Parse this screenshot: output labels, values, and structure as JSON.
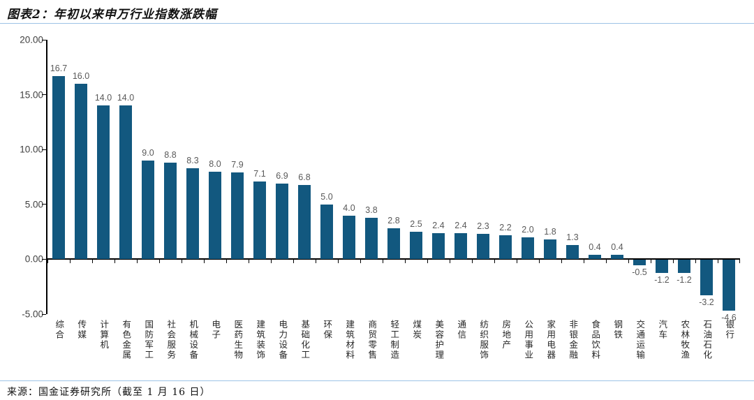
{
  "header": {
    "title": "图表2：年初以来申万行业指数涨跌幅"
  },
  "footer": {
    "source": "来源：国金证券研究所（截至 1 月 16 日）"
  },
  "colors": {
    "bar": "#12587F",
    "rule": "#9DC3E6",
    "value_label": "#595959",
    "axis_label": "#404040",
    "axis_line": "#000000"
  },
  "chart_data": {
    "type": "bar",
    "title": "年初以来申万行业指数涨跌幅",
    "categories": [
      "综合",
      "传媒",
      "计算机",
      "有色金属",
      "国防军工",
      "社会服务",
      "机械设备",
      "电子",
      "医药生物",
      "建筑装饰",
      "电力设备",
      "基础化工",
      "环保",
      "建筑材料",
      "商贸零售",
      "轻工制造",
      "煤炭",
      "美容护理",
      "通信",
      "纺织服饰",
      "房地产",
      "公用事业",
      "家用电器",
      "非银金融",
      "食品饮料",
      "钢铁",
      "交通运输",
      "汽车",
      "农林牧渔",
      "石油石化",
      "银行"
    ],
    "values": [
      16.7,
      16.0,
      14.0,
      14.0,
      9.0,
      8.8,
      8.3,
      8.0,
      7.9,
      7.1,
      6.9,
      6.8,
      5.0,
      4.0,
      3.8,
      2.8,
      2.5,
      2.4,
      2.4,
      2.3,
      2.2,
      2.0,
      1.8,
      1.3,
      0.4,
      0.4,
      -0.5,
      -1.2,
      -1.2,
      -3.2,
      -4.6
    ],
    "ytick_labels": [
      "20.00",
      "15.00",
      "10.00",
      "5.00",
      "0.00",
      "-5.00"
    ],
    "yticks": [
      20,
      15,
      10,
      5,
      0,
      -5
    ],
    "ylim": [
      -5,
      20
    ],
    "xlabel": "",
    "ylabel": "",
    "grid": false,
    "legend": "none",
    "bar_color": "#12587F"
  }
}
